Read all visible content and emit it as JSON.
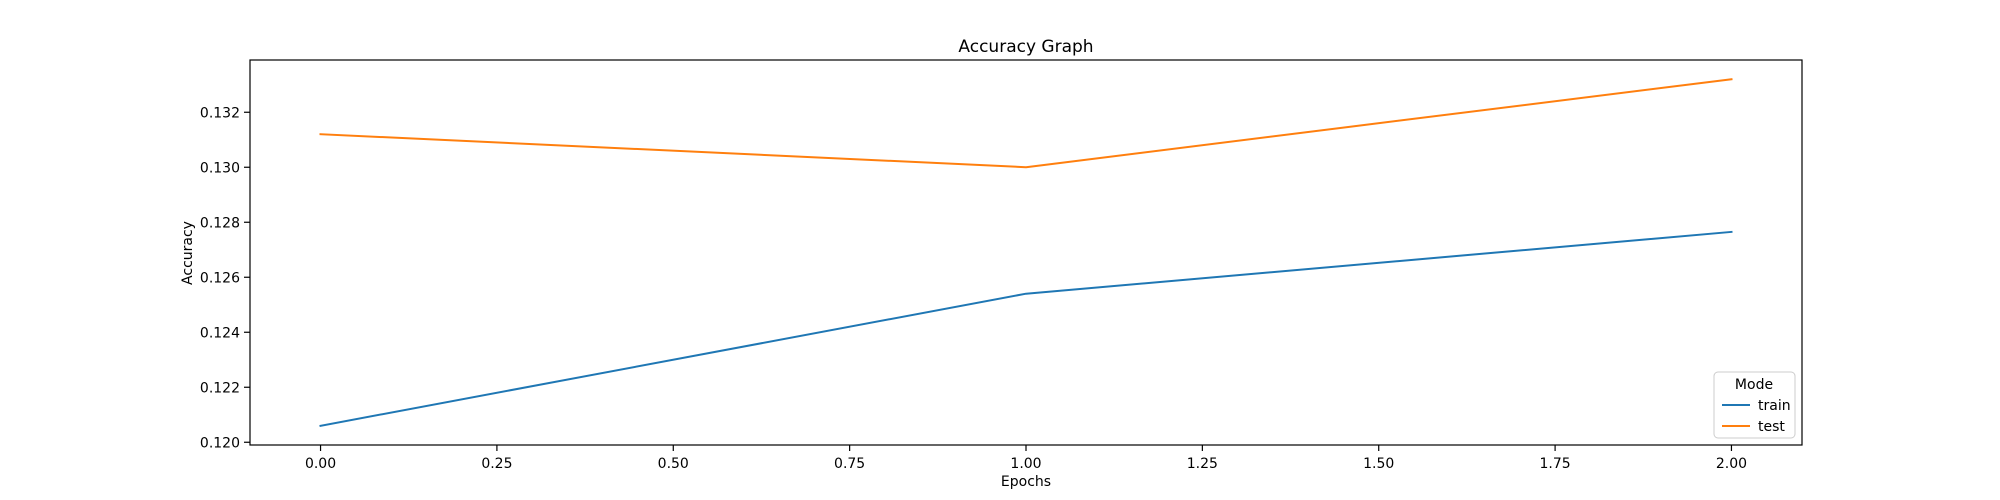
{
  "chart_data": {
    "type": "line",
    "title": "Accuracy Graph",
    "xlabel": "Epochs",
    "ylabel": "Accuracy",
    "x": [
      0,
      1,
      2
    ],
    "xlim": [
      -0.1,
      2.1
    ],
    "ylim": [
      0.1199,
      0.1339
    ],
    "xticks": [
      0,
      0.25,
      0.5,
      0.75,
      1,
      1.25,
      1.5,
      1.75,
      2
    ],
    "xtick_labels": [
      "0.00",
      "0.25",
      "0.50",
      "0.75",
      "1.00",
      "1.25",
      "1.50",
      "1.75",
      "2.00"
    ],
    "yticks": [
      0.12,
      0.122,
      0.124,
      0.126,
      0.128,
      0.13,
      0.132
    ],
    "ytick_labels": [
      "0.120",
      "0.122",
      "0.124",
      "0.126",
      "0.128",
      "0.130",
      "0.132"
    ],
    "grid": false,
    "legend": {
      "title": "Mode",
      "placement": "lower-right"
    },
    "series": [
      {
        "name": "train",
        "color": "#1f77b4",
        "values": [
          0.1206,
          0.1254,
          0.12765
        ]
      },
      {
        "name": "test",
        "color": "#ff7f0e",
        "values": [
          0.1312,
          0.13,
          0.1332
        ]
      }
    ]
  }
}
